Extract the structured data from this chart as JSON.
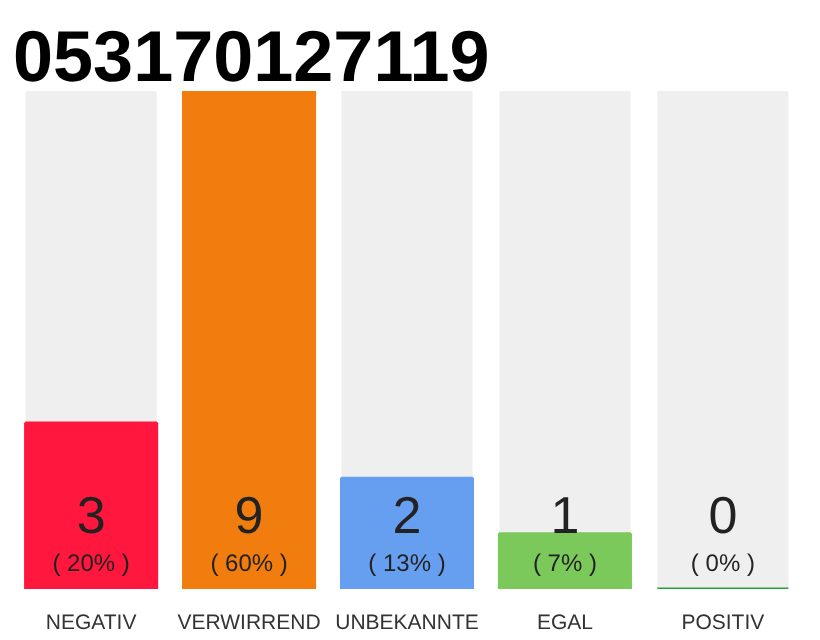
{
  "chart_data": {
    "type": "bar",
    "title": "053170127119",
    "categories": [
      "NEGATIV",
      "VERWIRREND",
      "UNBEKANNTE",
      "EGAL",
      "POSITIV"
    ],
    "values": [
      3,
      9,
      2,
      1,
      0
    ],
    "colors": [
      "#ff173d",
      "#f07d0e",
      "#669ff0",
      "#7cc95b",
      "#22a33c"
    ],
    "value_labels": [
      "3\n( 20% )",
      "9\n( 60% )",
      "2\n( 13% )",
      "1\n( 7% )",
      "0\n( 0% )"
    ],
    "ylim": [
      0,
      9
    ],
    "tick_labels": "x",
    "grid": false
  }
}
